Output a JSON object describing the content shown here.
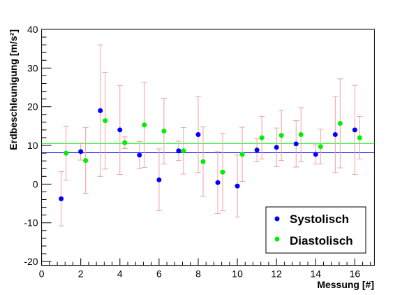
{
  "chart_data": {
    "type": "scatter",
    "title": "",
    "xlabel": "Messung [#]",
    "ylabel": "Erdbeschleunigung [m/s²]",
    "xlim": [
      0,
      17
    ],
    "ylim": [
      -21,
      40
    ],
    "x_ticks": [
      0,
      2,
      4,
      6,
      8,
      10,
      12,
      14,
      16
    ],
    "y_ticks": [
      -20,
      -10,
      0,
      10,
      20,
      30,
      40
    ],
    "x_tick_labels": [
      "0",
      "2",
      "4",
      "6",
      "8",
      "10",
      "12",
      "14",
      "16"
    ],
    "y_tick_labels": [
      "-20",
      "-10",
      "0",
      "10",
      "20",
      "30",
      "40"
    ],
    "grid": false,
    "legend_position": "bottom-right",
    "error_bar_color": "#f0a0a0",
    "series": [
      {
        "name": "Systolisch",
        "color": "#0000ff",
        "x": [
          1,
          2,
          3,
          4,
          5,
          6,
          7,
          8,
          9,
          10,
          11,
          12,
          13,
          14,
          15,
          16
        ],
        "y": [
          -3.8,
          8.4,
          19.0,
          14.0,
          7.5,
          1.1,
          8.6,
          12.8,
          0.4,
          -0.5,
          8.8,
          9.5,
          10.4,
          7.7,
          12.8,
          14.0
        ],
        "err": [
          7.0,
          2.2,
          17.0,
          11.5,
          3.5,
          8.0,
          2.5,
          9.8,
          8.0,
          8.0,
          3.0,
          5.0,
          6.0,
          2.5,
          9.8,
          11.5
        ],
        "mean": 8.1
      },
      {
        "name": "Diastolisch",
        "color": "#00ee00",
        "x": [
          1.25,
          2.25,
          3.25,
          4.25,
          5.25,
          6.25,
          7.25,
          8.25,
          9.25,
          10.25,
          11.25,
          12.25,
          13.25,
          14.25,
          15.25,
          16.25
        ],
        "y": [
          8.0,
          6.1,
          16.4,
          10.7,
          15.3,
          13.7,
          8.6,
          5.8,
          3.1,
          7.7,
          12.0,
          12.6,
          12.8,
          9.7,
          15.7,
          12.0
        ],
        "err": [
          7.0,
          8.5,
          12.5,
          1.5,
          11.0,
          8.5,
          6.0,
          9.0,
          10.0,
          7.0,
          5.5,
          6.5,
          7.0,
          4.5,
          11.5,
          5.5
        ],
        "mean": 10.5
      }
    ]
  }
}
